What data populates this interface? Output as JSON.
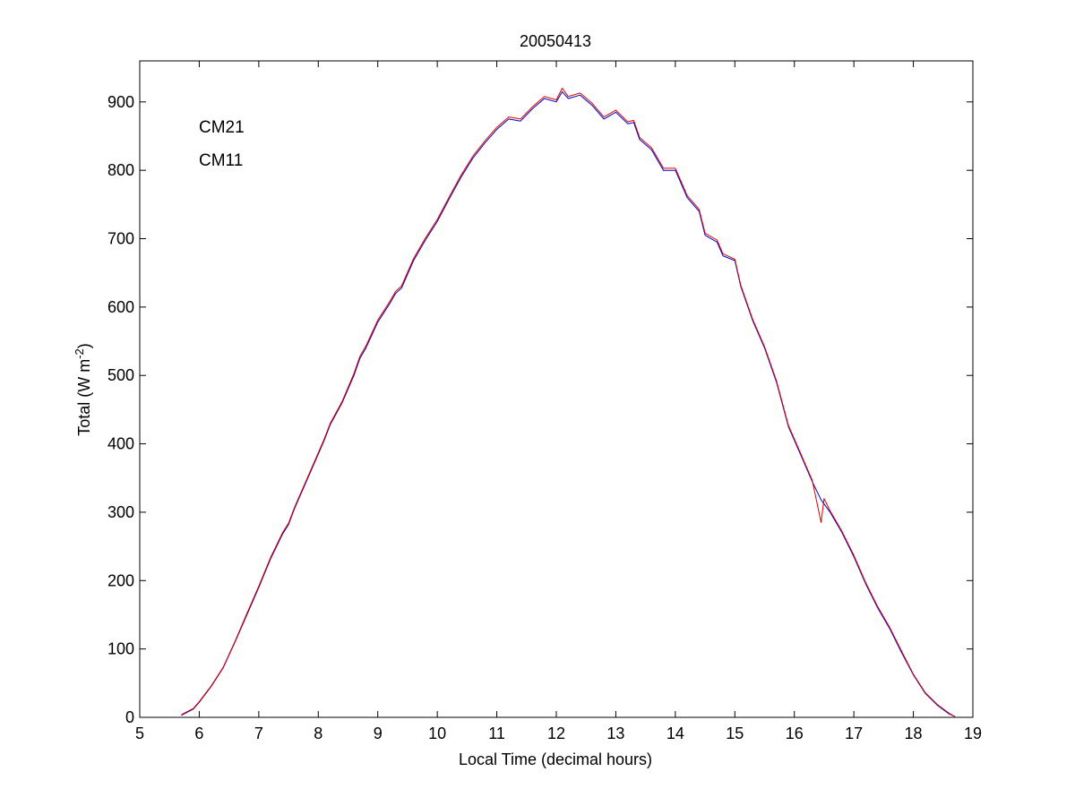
{
  "chart_data": {
    "type": "line",
    "title": "20050413",
    "xlabel": "Local Time (decimal hours)",
    "ylabel": "Total (W m",
    "ylabel_sup": "-2",
    "ylabel_close": ")",
    "xlim": [
      5,
      19
    ],
    "ylim": [
      0,
      960
    ],
    "xticks": [
      5,
      6,
      7,
      8,
      9,
      10,
      11,
      12,
      13,
      14,
      15,
      16,
      17,
      18,
      19
    ],
    "yticks": [
      0,
      100,
      200,
      300,
      400,
      500,
      600,
      700,
      800,
      900
    ],
    "grid": false,
    "legend_position": "top-left",
    "series": [
      {
        "name": "CM21",
        "color": "#0000cc",
        "points": [
          [
            5.7,
            3
          ],
          [
            5.9,
            12
          ],
          [
            6.0,
            22
          ],
          [
            6.2,
            45
          ],
          [
            6.4,
            72
          ],
          [
            6.6,
            110
          ],
          [
            6.8,
            150
          ],
          [
            7.0,
            190
          ],
          [
            7.2,
            232
          ],
          [
            7.4,
            268
          ],
          [
            7.5,
            282
          ],
          [
            7.6,
            305
          ],
          [
            7.8,
            345
          ],
          [
            8.0,
            385
          ],
          [
            8.1,
            405
          ],
          [
            8.2,
            428
          ],
          [
            8.4,
            460
          ],
          [
            8.6,
            500
          ],
          [
            8.7,
            525
          ],
          [
            8.8,
            540
          ],
          [
            9.0,
            578
          ],
          [
            9.2,
            605
          ],
          [
            9.3,
            620
          ],
          [
            9.4,
            628
          ],
          [
            9.6,
            668
          ],
          [
            9.8,
            698
          ],
          [
            10.0,
            725
          ],
          [
            10.2,
            758
          ],
          [
            10.4,
            790
          ],
          [
            10.6,
            818
          ],
          [
            10.8,
            840
          ],
          [
            11.0,
            860
          ],
          [
            11.2,
            875
          ],
          [
            11.4,
            872
          ],
          [
            11.6,
            890
          ],
          [
            11.8,
            905
          ],
          [
            12.0,
            900
          ],
          [
            12.1,
            915
          ],
          [
            12.2,
            905
          ],
          [
            12.4,
            910
          ],
          [
            12.6,
            895
          ],
          [
            12.8,
            875
          ],
          [
            13.0,
            885
          ],
          [
            13.2,
            868
          ],
          [
            13.3,
            870
          ],
          [
            13.4,
            845
          ],
          [
            13.6,
            830
          ],
          [
            13.8,
            800
          ],
          [
            14.0,
            800
          ],
          [
            14.2,
            760
          ],
          [
            14.4,
            740
          ],
          [
            14.5,
            705
          ],
          [
            14.7,
            695
          ],
          [
            14.8,
            675
          ],
          [
            15.0,
            668
          ],
          [
            15.1,
            630
          ],
          [
            15.3,
            580
          ],
          [
            15.5,
            540
          ],
          [
            15.7,
            490
          ],
          [
            15.9,
            425
          ],
          [
            16.1,
            385
          ],
          [
            16.3,
            345
          ],
          [
            16.45,
            318
          ],
          [
            16.6,
            300
          ],
          [
            16.8,
            270
          ],
          [
            17.0,
            235
          ],
          [
            17.2,
            195
          ],
          [
            17.4,
            160
          ],
          [
            17.6,
            130
          ],
          [
            17.8,
            95
          ],
          [
            18.0,
            62
          ],
          [
            18.2,
            35
          ],
          [
            18.4,
            18
          ],
          [
            18.6,
            5
          ],
          [
            18.7,
            1
          ]
        ]
      },
      {
        "name": "CM11",
        "color": "#dd0000",
        "points": [
          [
            5.7,
            4
          ],
          [
            5.9,
            13
          ],
          [
            6.0,
            23
          ],
          [
            6.2,
            46
          ],
          [
            6.4,
            73
          ],
          [
            6.6,
            111
          ],
          [
            6.8,
            152
          ],
          [
            7.0,
            192
          ],
          [
            7.2,
            234
          ],
          [
            7.4,
            270
          ],
          [
            7.5,
            284
          ],
          [
            7.6,
            307
          ],
          [
            7.8,
            347
          ],
          [
            8.0,
            387
          ],
          [
            8.1,
            407
          ],
          [
            8.2,
            430
          ],
          [
            8.4,
            462
          ],
          [
            8.6,
            503
          ],
          [
            8.7,
            528
          ],
          [
            8.8,
            543
          ],
          [
            9.0,
            581
          ],
          [
            9.2,
            608
          ],
          [
            9.3,
            623
          ],
          [
            9.4,
            631
          ],
          [
            9.6,
            671
          ],
          [
            9.8,
            701
          ],
          [
            10.0,
            728
          ],
          [
            10.2,
            761
          ],
          [
            10.4,
            793
          ],
          [
            10.6,
            821
          ],
          [
            10.8,
            843
          ],
          [
            11.0,
            863
          ],
          [
            11.2,
            878
          ],
          [
            11.4,
            875
          ],
          [
            11.6,
            893
          ],
          [
            11.8,
            908
          ],
          [
            12.0,
            903
          ],
          [
            12.1,
            920
          ],
          [
            12.2,
            908
          ],
          [
            12.4,
            913
          ],
          [
            12.6,
            898
          ],
          [
            12.8,
            878
          ],
          [
            13.0,
            888
          ],
          [
            13.2,
            871
          ],
          [
            13.3,
            873
          ],
          [
            13.4,
            848
          ],
          [
            13.6,
            833
          ],
          [
            13.8,
            803
          ],
          [
            14.0,
            803
          ],
          [
            14.2,
            763
          ],
          [
            14.4,
            743
          ],
          [
            14.5,
            708
          ],
          [
            14.7,
            698
          ],
          [
            14.8,
            678
          ],
          [
            15.0,
            670
          ],
          [
            15.1,
            632
          ],
          [
            15.3,
            582
          ],
          [
            15.5,
            542
          ],
          [
            15.7,
            492
          ],
          [
            15.9,
            427
          ],
          [
            16.1,
            387
          ],
          [
            16.3,
            347
          ],
          [
            16.45,
            285
          ],
          [
            16.5,
            320
          ],
          [
            16.6,
            302
          ],
          [
            16.8,
            272
          ],
          [
            17.0,
            237
          ],
          [
            17.2,
            197
          ],
          [
            17.4,
            162
          ],
          [
            17.6,
            132
          ],
          [
            17.8,
            97
          ],
          [
            18.0,
            63
          ],
          [
            18.2,
            36
          ],
          [
            18.4,
            19
          ],
          [
            18.6,
            6
          ],
          [
            18.7,
            1
          ]
        ]
      }
    ]
  }
}
